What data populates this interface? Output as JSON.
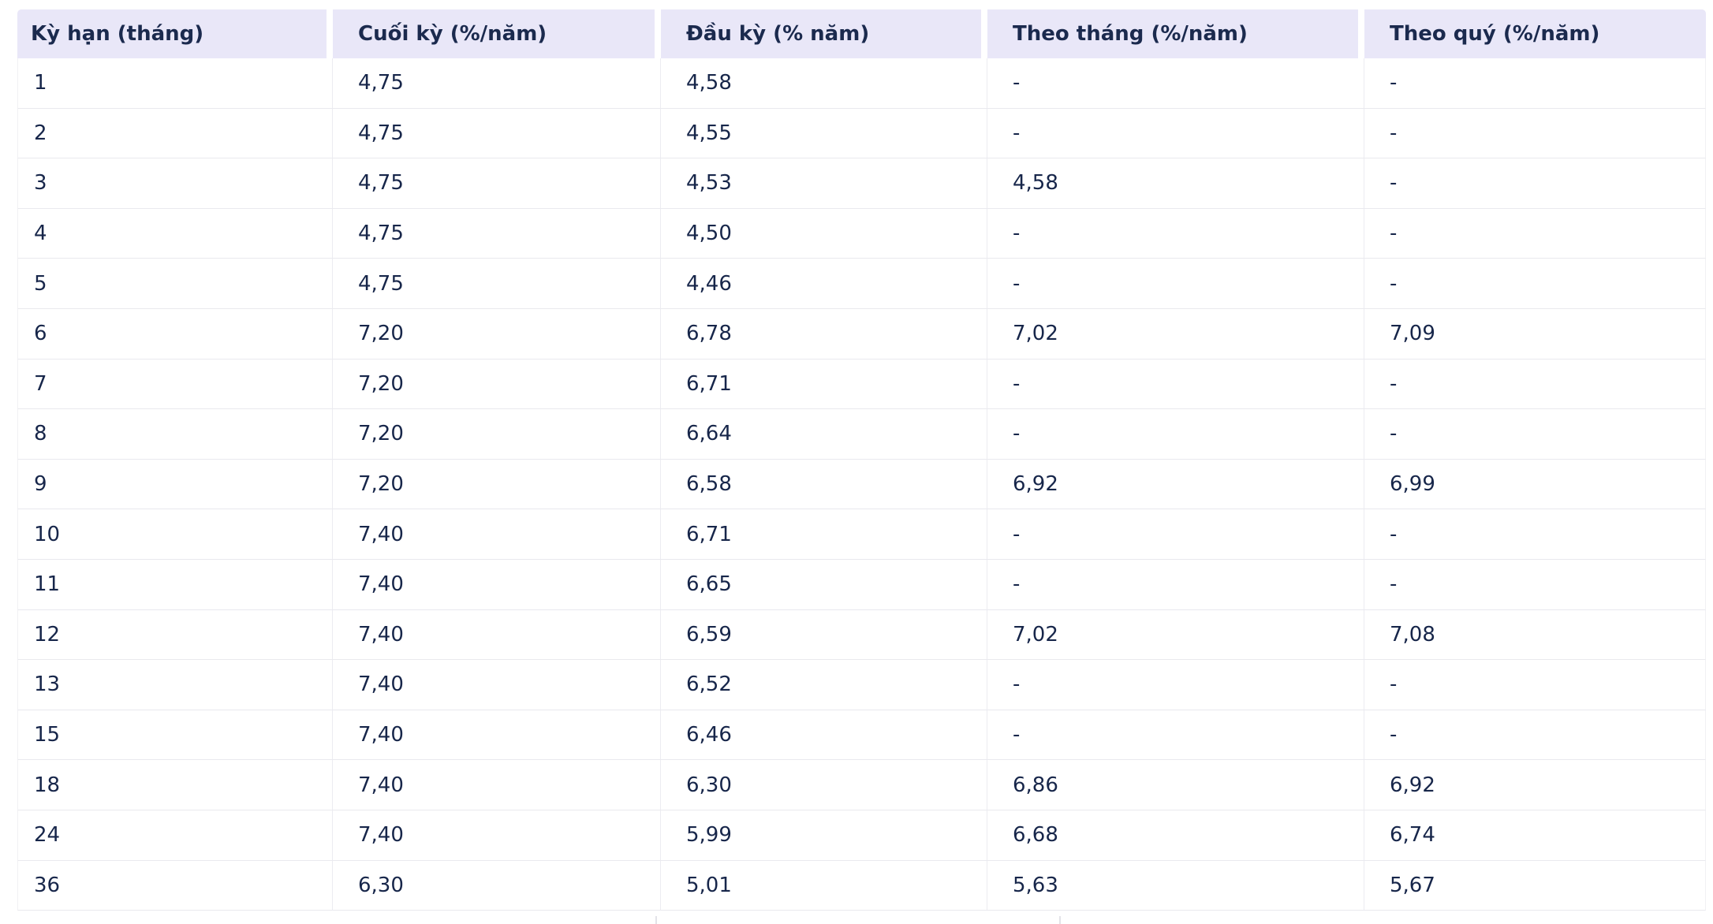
{
  "chart_data": {
    "type": "table",
    "title": "",
    "columns": [
      {
        "key": "term-months",
        "label": "Kỳ hạn (tháng)"
      },
      {
        "key": "end-of-term",
        "label": "Cuối kỳ (%/năm)"
      },
      {
        "key": "start-of-term",
        "label": "Đầu kỳ (% năm)"
      },
      {
        "key": "monthly",
        "label": "Theo tháng (%/năm)"
      },
      {
        "key": "quarterly",
        "label": "Theo quý (%/năm)"
      }
    ],
    "rows": [
      [
        "1",
        "4,75",
        "4,58",
        "-",
        "-"
      ],
      [
        "2",
        "4,75",
        "4,55",
        "-",
        "-"
      ],
      [
        "3",
        "4,75",
        "4,53",
        "4,58",
        "-"
      ],
      [
        "4",
        "4,75",
        "4,50",
        "-",
        "-"
      ],
      [
        "5",
        "4,75",
        "4,46",
        "-",
        "-"
      ],
      [
        "6",
        "7,20",
        "6,78",
        "7,02",
        "7,09"
      ],
      [
        "7",
        "7,20",
        "6,71",
        "-",
        "-"
      ],
      [
        "8",
        "7,20",
        "6,64",
        "-",
        "-"
      ],
      [
        "9",
        "7,20",
        "6,58",
        "6,92",
        "6,99"
      ],
      [
        "10",
        "7,40",
        "6,71",
        "-",
        "-"
      ],
      [
        "11",
        "7,40",
        "6,65",
        "-",
        "-"
      ],
      [
        "12",
        "7,40",
        "6,59",
        "7,02",
        "7,08"
      ],
      [
        "13",
        "7,40",
        "6,52",
        "-",
        "-"
      ],
      [
        "15",
        "7,40",
        "6,46",
        "-",
        "-"
      ],
      [
        "18",
        "7,40",
        "6,30",
        "6,86",
        "6,92"
      ],
      [
        "24",
        "7,40",
        "5,99",
        "6,68",
        "6,74"
      ],
      [
        "36",
        "6,30",
        "5,01",
        "5,63",
        "5,67"
      ]
    ]
  },
  "colors": {
    "header_bg": "#E9E7F8",
    "text": "#17264A",
    "header_text": "#1B2A4E",
    "row_border": "#E9E9EE",
    "column_border": "#ECECF1",
    "page_bg": "#FFFFFF"
  }
}
